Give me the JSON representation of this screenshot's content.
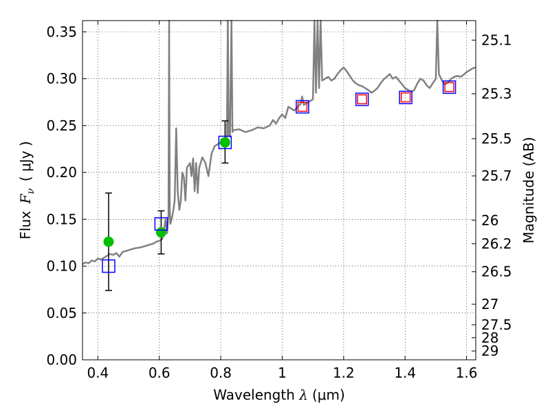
{
  "chart_data": {
    "type": "scatter",
    "xlabel": {
      "prefix": "Wavelength ",
      "symbol": "λ",
      "unit": "(μm)"
    },
    "ylabel": {
      "prefix": "Flux ",
      "symbol_main": "F",
      "symbol_sub": "ν",
      "unit": "( μJy )"
    },
    "y2label": "Magnitude (AB)",
    "xlim": [
      0.35,
      1.63
    ],
    "ylim": [
      0.0,
      0.362
    ],
    "grid": true,
    "x_ticks": [
      0.4,
      0.6,
      0.8,
      1.0,
      1.2,
      1.4,
      1.6
    ],
    "x_tick_labels": [
      "0.4",
      "0.6",
      "0.8",
      "1",
      "1.2",
      "1.4",
      "1.6"
    ],
    "y_ticks": [
      0.0,
      0.05,
      0.1,
      0.15,
      0.2,
      0.25,
      0.3,
      0.35
    ],
    "y_tick_labels": [
      "0.00",
      "0.05",
      "0.10",
      "0.15",
      "0.20",
      "0.25",
      "0.30",
      "0.35"
    ],
    "y2_ticks": [
      {
        "label": "25.1",
        "flux": 0.3412
      },
      {
        "label": "25.3",
        "flux": 0.2838
      },
      {
        "label": "25.5",
        "flux": 0.236
      },
      {
        "label": "25.7",
        "flux": 0.1963
      },
      {
        "label": "26",
        "flux": 0.1489
      },
      {
        "label": "26.2",
        "flux": 0.1239
      },
      {
        "label": "26.5",
        "flux": 0.094
      },
      {
        "label": "27",
        "flux": 0.0593
      },
      {
        "label": "27.5",
        "flux": 0.0374
      },
      {
        "label": "28",
        "flux": 0.0236
      },
      {
        "label": "29",
        "flux": 0.0094
      }
    ],
    "colors": {
      "model": "#808080",
      "observed": "#00bf00",
      "model_phot_outer": "#0000ff",
      "model_phot_inner": "#ff0000",
      "grid": "#000000"
    },
    "series": [
      {
        "type": "line",
        "points": [
          [
            0.35,
            0.102
          ],
          [
            0.36,
            0.104
          ],
          [
            0.37,
            0.103
          ],
          [
            0.38,
            0.106
          ],
          [
            0.39,
            0.105
          ],
          [
            0.4,
            0.108
          ],
          [
            0.41,
            0.107
          ],
          [
            0.42,
            0.109
          ],
          [
            0.43,
            0.111
          ],
          [
            0.44,
            0.113
          ],
          [
            0.45,
            0.112
          ],
          [
            0.46,
            0.114
          ],
          [
            0.47,
            0.11
          ],
          [
            0.48,
            0.115
          ],
          [
            0.5,
            0.117
          ],
          [
            0.52,
            0.119
          ],
          [
            0.54,
            0.12
          ],
          [
            0.56,
            0.122
          ],
          [
            0.58,
            0.124
          ],
          [
            0.59,
            0.126
          ],
          [
            0.6,
            0.127
          ],
          [
            0.61,
            0.129
          ],
          [
            0.615,
            0.138
          ],
          [
            0.62,
            0.15
          ],
          [
            0.625,
            0.135
          ],
          [
            0.63,
            0.155
          ],
          [
            0.632,
            0.362
          ],
          [
            0.634,
            0.16
          ],
          [
            0.636,
            0.145
          ],
          [
            0.64,
            0.15
          ],
          [
            0.645,
            0.158
          ],
          [
            0.65,
            0.17
          ],
          [
            0.655,
            0.247
          ],
          [
            0.66,
            0.18
          ],
          [
            0.665,
            0.16
          ],
          [
            0.67,
            0.17
          ],
          [
            0.675,
            0.2
          ],
          [
            0.68,
            0.195
          ],
          [
            0.685,
            0.17
          ],
          [
            0.69,
            0.205
          ],
          [
            0.7,
            0.21
          ],
          [
            0.705,
            0.196
          ],
          [
            0.71,
            0.215
          ],
          [
            0.715,
            0.18
          ],
          [
            0.72,
            0.21
          ],
          [
            0.725,
            0.178
          ],
          [
            0.73,
            0.205
          ],
          [
            0.74,
            0.216
          ],
          [
            0.75,
            0.21
          ],
          [
            0.76,
            0.196
          ],
          [
            0.77,
            0.22
          ],
          [
            0.78,
            0.228
          ],
          [
            0.79,
            0.23
          ],
          [
            0.8,
            0.232
          ],
          [
            0.81,
            0.234
          ],
          [
            0.82,
            0.236
          ],
          [
            0.823,
            0.362
          ],
          [
            0.826,
            0.24
          ],
          [
            0.83,
            0.238
          ],
          [
            0.835,
            0.362
          ],
          [
            0.838,
            0.243
          ],
          [
            0.84,
            0.245
          ],
          [
            0.86,
            0.246
          ],
          [
            0.88,
            0.243
          ],
          [
            0.9,
            0.245
          ],
          [
            0.92,
            0.248
          ],
          [
            0.94,
            0.247
          ],
          [
            0.96,
            0.25
          ],
          [
            0.97,
            0.256
          ],
          [
            0.98,
            0.252
          ],
          [
            0.99,
            0.258
          ],
          [
            1.0,
            0.262
          ],
          [
            1.01,
            0.258
          ],
          [
            1.02,
            0.27
          ],
          [
            1.03,
            0.268
          ],
          [
            1.04,
            0.266
          ],
          [
            1.05,
            0.27
          ],
          [
            1.06,
            0.273
          ],
          [
            1.065,
            0.281
          ],
          [
            1.07,
            0.272
          ],
          [
            1.08,
            0.274
          ],
          [
            1.09,
            0.276
          ],
          [
            1.1,
            0.278
          ],
          [
            1.105,
            0.362
          ],
          [
            1.11,
            0.285
          ],
          [
            1.115,
            0.362
          ],
          [
            1.12,
            0.29
          ],
          [
            1.125,
            0.362
          ],
          [
            1.13,
            0.298
          ],
          [
            1.14,
            0.3
          ],
          [
            1.15,
            0.302
          ],
          [
            1.16,
            0.298
          ],
          [
            1.17,
            0.3
          ],
          [
            1.18,
            0.305
          ],
          [
            1.19,
            0.309
          ],
          [
            1.2,
            0.312
          ],
          [
            1.21,
            0.308
          ],
          [
            1.22,
            0.303
          ],
          [
            1.23,
            0.298
          ],
          [
            1.24,
            0.295
          ],
          [
            1.25,
            0.293
          ],
          [
            1.26,
            0.292
          ],
          [
            1.27,
            0.29
          ],
          [
            1.28,
            0.288
          ],
          [
            1.29,
            0.285
          ],
          [
            1.3,
            0.287
          ],
          [
            1.31,
            0.29
          ],
          [
            1.32,
            0.295
          ],
          [
            1.33,
            0.299
          ],
          [
            1.34,
            0.302
          ],
          [
            1.35,
            0.305
          ],
          [
            1.36,
            0.3
          ],
          [
            1.37,
            0.302
          ],
          [
            1.38,
            0.298
          ],
          [
            1.39,
            0.294
          ],
          [
            1.4,
            0.29
          ],
          [
            1.41,
            0.288
          ],
          [
            1.42,
            0.286
          ],
          [
            1.43,
            0.288
          ],
          [
            1.44,
            0.295
          ],
          [
            1.45,
            0.3
          ],
          [
            1.46,
            0.298
          ],
          [
            1.47,
            0.293
          ],
          [
            1.48,
            0.29
          ],
          [
            1.49,
            0.295
          ],
          [
            1.5,
            0.3
          ],
          [
            1.505,
            0.362
          ],
          [
            1.51,
            0.305
          ],
          [
            1.52,
            0.298
          ],
          [
            1.53,
            0.294
          ],
          [
            1.54,
            0.296
          ],
          [
            1.55,
            0.3
          ],
          [
            1.56,
            0.302
          ],
          [
            1.57,
            0.303
          ],
          [
            1.58,
            0.302
          ],
          [
            1.59,
            0.304
          ],
          [
            1.6,
            0.307
          ],
          [
            1.61,
            0.309
          ],
          [
            1.62,
            0.311
          ],
          [
            1.63,
            0.312
          ]
        ]
      },
      {
        "type": "errorbar",
        "points": [
          {
            "x": 0.435,
            "y": 0.126,
            "ylow": 0.074,
            "yhigh": 0.178
          },
          {
            "x": 0.606,
            "y": 0.136,
            "ylow": 0.113,
            "yhigh": 0.159
          },
          {
            "x": 0.814,
            "y": 0.232,
            "ylow": 0.21,
            "yhigh": 0.255
          }
        ]
      },
      {
        "type": "scatter",
        "marker": "square",
        "points": [
          {
            "x": 0.435,
            "y": 0.1
          },
          {
            "x": 0.606,
            "y": 0.145
          },
          {
            "x": 0.814,
            "y": 0.232
          },
          {
            "x": 1.066,
            "y": 0.27
          },
          {
            "x": 1.26,
            "y": 0.278
          },
          {
            "x": 1.402,
            "y": 0.28
          },
          {
            "x": 1.544,
            "y": 0.291
          }
        ]
      },
      {
        "type": "scatter",
        "marker": "square",
        "points": [
          {
            "x": 1.066,
            "y": 0.27
          },
          {
            "x": 1.26,
            "y": 0.278
          },
          {
            "x": 1.402,
            "y": 0.28
          },
          {
            "x": 1.544,
            "y": 0.291
          }
        ]
      }
    ]
  }
}
